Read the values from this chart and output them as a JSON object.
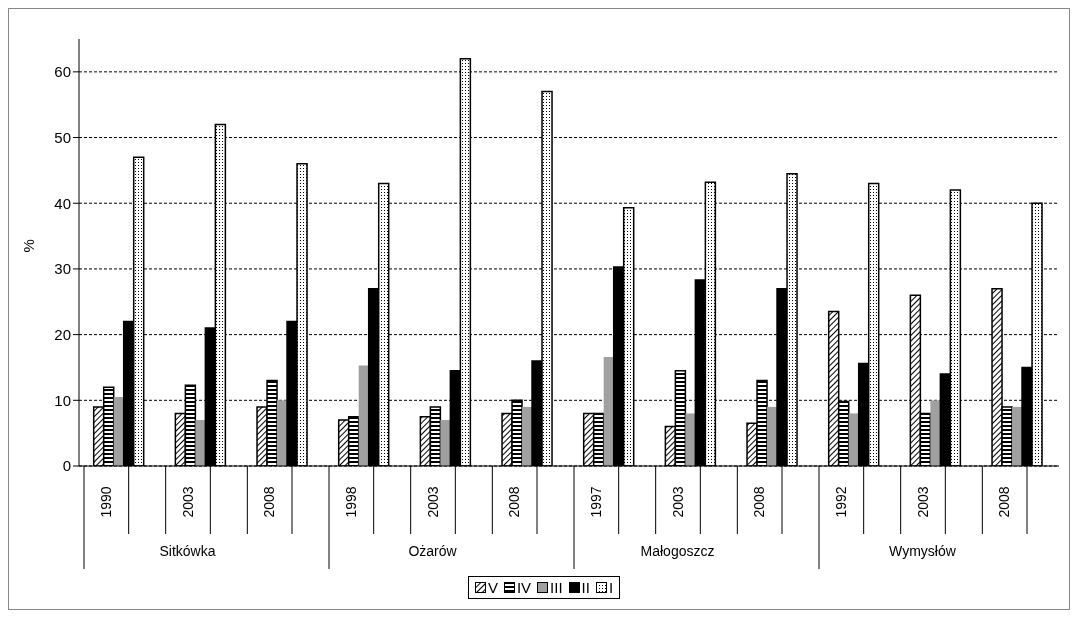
{
  "chart_data": {
    "type": "bar",
    "ylabel": "%",
    "categories": [
      "1990",
      "2003",
      "2008",
      "1998",
      "2003",
      "2008",
      "1997",
      "2003",
      "2008",
      "1992",
      "2003",
      "2008"
    ],
    "annotations": [
      "Sitkówka",
      "Ożarów",
      "Małogoszcz",
      "Wymysłów"
    ],
    "series": [
      {
        "name": "V",
        "color": "#000000",
        "values": [
          9,
          8,
          9,
          7,
          7.5,
          8,
          8,
          6,
          6.5,
          23.5,
          26,
          27
        ]
      },
      {
        "name": "IV",
        "color": "#000000",
        "values": [
          12,
          12.3,
          13,
          7.5,
          9,
          10,
          8,
          14.5,
          13,
          9.8,
          8,
          9
        ]
      },
      {
        "name": "III",
        "color": "#a0a0a0",
        "values": [
          10.5,
          7,
          10,
          15.3,
          7,
          9,
          16.6,
          8,
          9,
          8,
          10,
          9
        ]
      },
      {
        "name": "II",
        "color": "#000000",
        "values": [
          22,
          21,
          22,
          27,
          14.5,
          16,
          30.3,
          28.3,
          27,
          15.6,
          14,
          15
        ]
      },
      {
        "name": "I",
        "color": "#000000",
        "values": [
          47,
          52,
          46,
          43,
          62,
          57,
          39.3,
          43.2,
          44.5,
          43,
          42,
          40
        ]
      }
    ],
    "ylim": [
      0,
      65
    ],
    "yticks": [
      0,
      10,
      20,
      30,
      40,
      50,
      60
    ],
    "grid": "y",
    "legend": "bottom"
  }
}
